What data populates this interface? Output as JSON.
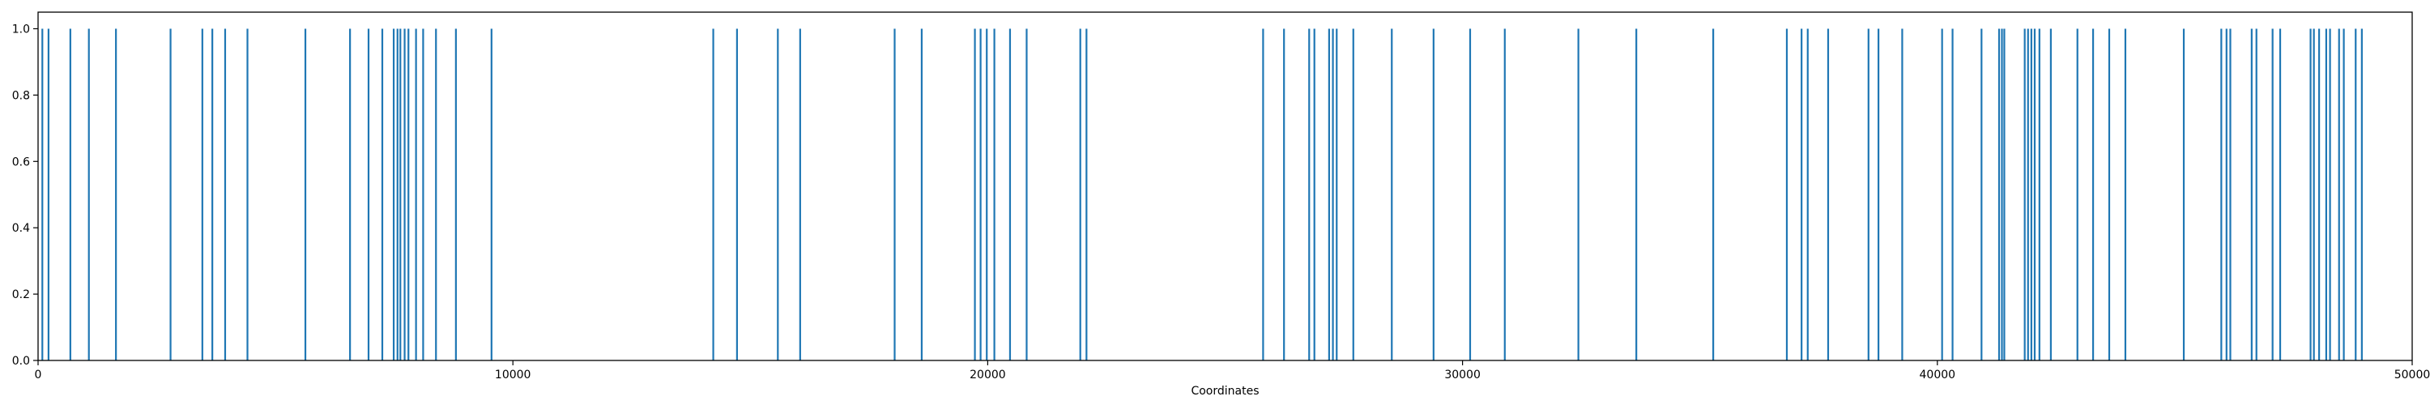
{
  "chart_data": {
    "type": "bar",
    "xlabel": "Coordinates",
    "ylabel": "",
    "title": "",
    "xlim": [
      0,
      50000
    ],
    "ylim": [
      0,
      1.05
    ],
    "x_ticks": [
      0,
      10000,
      20000,
      30000,
      40000,
      50000
    ],
    "y_ticks": [
      0.0,
      0.2,
      0.4,
      0.6,
      0.8,
      1.0
    ],
    "x_tick_labels": [
      "0",
      "10000",
      "20000",
      "30000",
      "40000",
      "50000"
    ],
    "y_tick_labels": [
      "0.0",
      "0.2",
      "0.4",
      "0.6",
      "0.8",
      "1.0"
    ],
    "grid": false,
    "bar_color": "#1f77b4",
    "series": [
      {
        "values_height": 1.0,
        "x": [
          90,
          220,
          680,
          1070,
          1640,
          2790,
          3460,
          3670,
          3940,
          4410,
          5630,
          6570,
          6960,
          7250,
          7490,
          7570,
          7630,
          7720,
          7800,
          7960,
          8110,
          8380,
          8800,
          9550,
          14220,
          14720,
          15580,
          16050,
          18040,
          18610,
          19730,
          19850,
          19980,
          20140,
          20470,
          20820,
          21950,
          22080,
          25800,
          26240,
          26770,
          26880,
          27190,
          27270,
          27350,
          27700,
          28510,
          29390,
          30160,
          30890,
          32440,
          33660,
          35280,
          36830,
          37140,
          37270,
          37700,
          38550,
          38760,
          39260,
          40100,
          40320,
          40930,
          41300,
          41360,
          41410,
          41840,
          41910,
          41980,
          42050,
          42150,
          42390,
          42950,
          43280,
          43620,
          43960,
          45190,
          45980,
          46090,
          46170,
          46620,
          46720,
          47060,
          47220,
          47860,
          47930,
          48040,
          48190,
          48270,
          48460,
          48560,
          48810,
          48940
        ]
      }
    ]
  }
}
